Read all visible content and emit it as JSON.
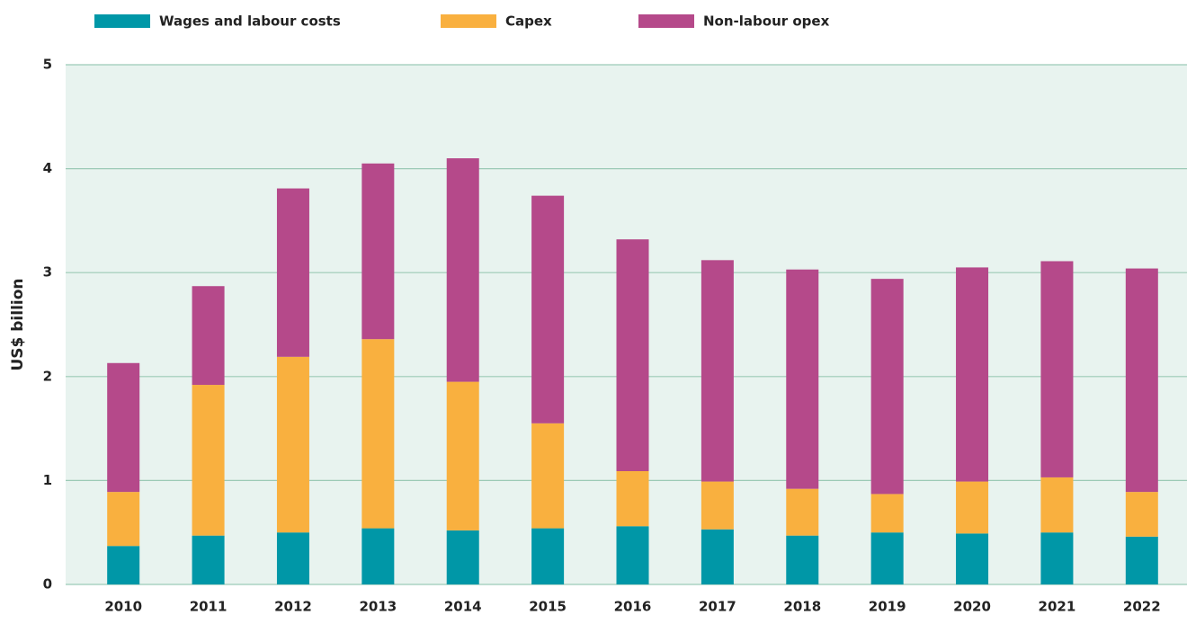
{
  "chart_data": {
    "type": "stacked_bar",
    "ylabel": "US$ billion",
    "categories": [
      "2010",
      "2011",
      "2012",
      "2013",
      "2014",
      "2015",
      "2016",
      "2017",
      "2018",
      "2019",
      "2020",
      "2021",
      "2022"
    ],
    "series": [
      {
        "name": "Wages and labour costs",
        "color": "#0097a7",
        "values": [
          0.37,
          0.47,
          0.5,
          0.54,
          0.52,
          0.54,
          0.56,
          0.53,
          0.47,
          0.5,
          0.49,
          0.5,
          0.46
        ]
      },
      {
        "name": "Capex",
        "color": "#f9b03f",
        "values": [
          0.52,
          1.45,
          1.69,
          1.82,
          1.43,
          1.01,
          0.53,
          0.46,
          0.45,
          0.37,
          0.5,
          0.53,
          0.43
        ]
      },
      {
        "name": "Non-labour opex",
        "color": "#b5498a",
        "values": [
          1.24,
          0.95,
          1.62,
          1.69,
          2.15,
          2.19,
          2.23,
          2.13,
          2.11,
          2.07,
          2.06,
          2.08,
          2.15
        ]
      }
    ],
    "ylim": [
      0,
      5
    ],
    "yticks": [
      0,
      1,
      2,
      3,
      4,
      5
    ],
    "grid": true
  }
}
